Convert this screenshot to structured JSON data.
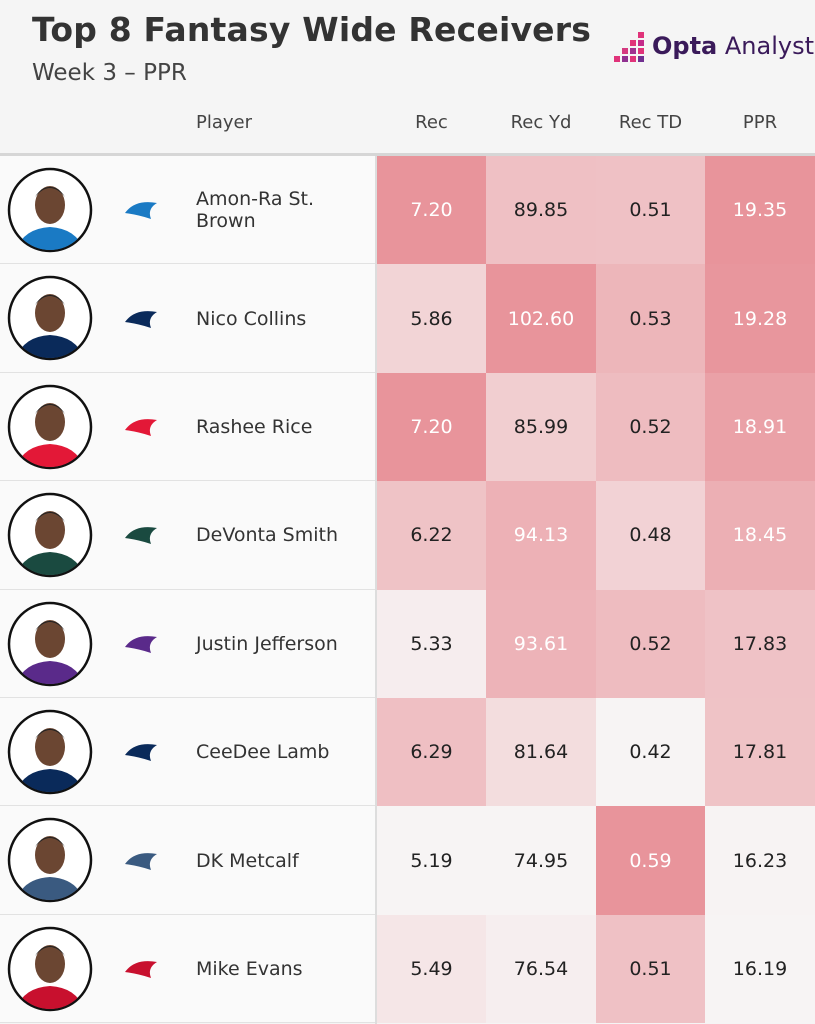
{
  "header": {
    "title": "Top 8 Fantasy Wide Receivers",
    "subtitle": "Week 3 – PPR"
  },
  "logo": {
    "brand": "Opta",
    "product": "Analyst"
  },
  "table": {
    "columns": [
      "Player",
      "Rec",
      "Rec Yd",
      "Rec TD",
      "PPR"
    ],
    "rows": [
      [
        "Amon-Ra St. Brown",
        "7.20",
        "89.85",
        "0.51",
        "19.35"
      ],
      [
        "Nico Collins",
        "5.86",
        "102.60",
        "0.53",
        "19.28"
      ],
      [
        "Rashee Rice",
        "7.20",
        "85.99",
        "0.52",
        "18.91"
      ],
      [
        "DeVonta Smith",
        "6.22",
        "94.13",
        "0.48",
        "18.45"
      ],
      [
        "Justin Jefferson",
        "5.33",
        "93.61",
        "0.52",
        "17.83"
      ],
      [
        "CeeDee Lamb",
        "6.29",
        "81.64",
        "0.42",
        "17.81"
      ],
      [
        "DK Metcalf",
        "5.19",
        "74.95",
        "0.59",
        "16.23"
      ],
      [
        "Mike Evans",
        "5.49",
        "76.54",
        "0.51",
        "16.19"
      ]
    ]
  }
}
